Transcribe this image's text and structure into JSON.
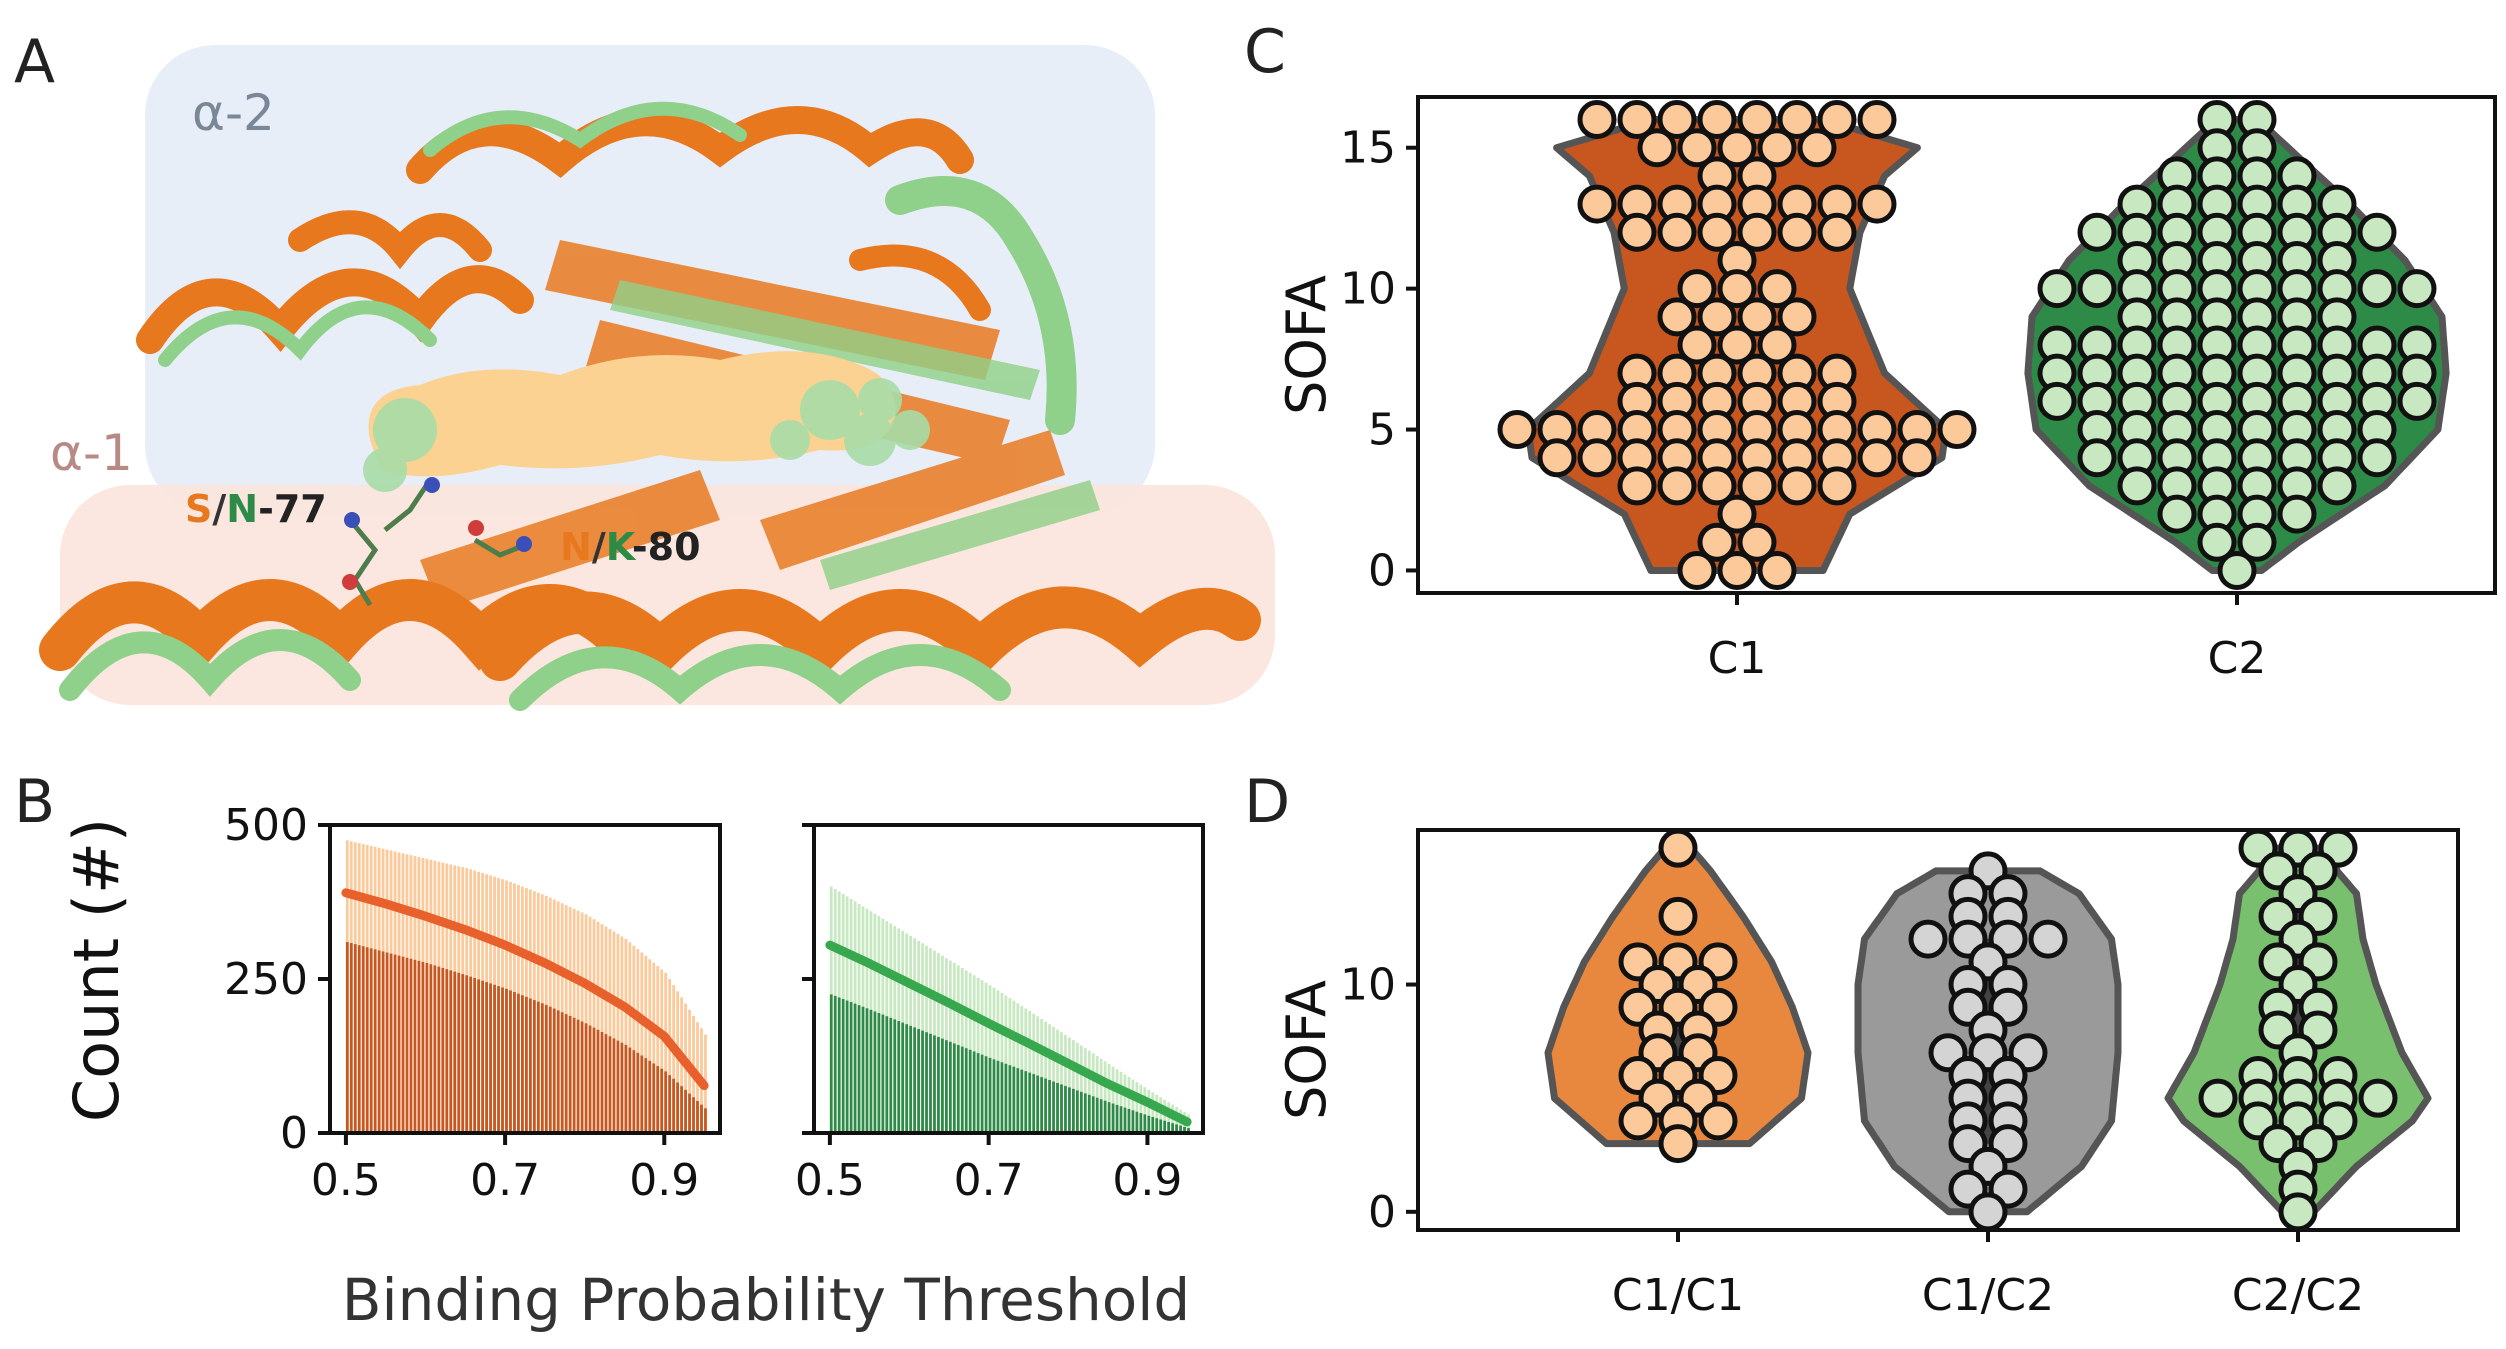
{
  "panels": {
    "A": {
      "letter": "A"
    },
    "B": {
      "letter": "B"
    },
    "C": {
      "letter": "C"
    },
    "D": {
      "letter": "D"
    }
  },
  "structure": {
    "region_top": "α-2",
    "region_bottom": "α-1",
    "residue1": {
      "a": "S",
      "sep": "/",
      "b": "N",
      "num": "-77"
    },
    "residue2": {
      "a": "N",
      "sep": "/",
      "b": "K",
      "num": "-80"
    }
  },
  "colors": {
    "c1_dark": "#c8561f",
    "c1_light": "#fcc99a",
    "c1_mid": "#e8883f",
    "c1_line": "#e8602c",
    "c2_dark": "#2e8b47",
    "c2_light": "#c7e8c0",
    "c2_line": "#38a84e",
    "c2_mid": "#78c06e",
    "grey": "#9a9a9a",
    "grey_light": "#d4d4d4",
    "outline": "#555555"
  },
  "chart_data": [
    {
      "panel": "B",
      "type": "bar",
      "series_name": "C1",
      "xlabel": "Binding Probability Threshold",
      "ylabel": "Count (#)",
      "xlim": [
        0.48,
        0.97
      ],
      "ylim": [
        0,
        500
      ],
      "xticks": [
        "0.5",
        "0.7",
        "0.9"
      ],
      "yticks": [
        "0",
        "250",
        "500"
      ],
      "x": [
        0.5,
        0.55,
        0.6,
        0.65,
        0.7,
        0.75,
        0.8,
        0.85,
        0.9,
        0.95
      ],
      "mean": [
        390,
        372,
        352,
        330,
        305,
        276,
        243,
        205,
        157,
        77
      ],
      "upper": [
        475,
        460,
        445,
        430,
        410,
        385,
        355,
        315,
        260,
        160
      ],
      "lower": [
        310,
        293,
        276,
        256,
        234,
        208,
        178,
        143,
        100,
        40
      ]
    },
    {
      "panel": "B",
      "type": "bar",
      "series_name": "C2",
      "xlim": [
        0.48,
        0.97
      ],
      "ylim": [
        0,
        500
      ],
      "xticks": [
        "0.5",
        "0.7",
        "0.9"
      ],
      "x": [
        0.5,
        0.55,
        0.6,
        0.65,
        0.7,
        0.75,
        0.8,
        0.85,
        0.9,
        0.95
      ],
      "mean": [
        305,
        275,
        243,
        211,
        178,
        146,
        113,
        80,
        50,
        18
      ],
      "upper": [
        400,
        360,
        320,
        280,
        240,
        198,
        155,
        112,
        70,
        30
      ],
      "lower": [
        225,
        200,
        174,
        148,
        122,
        98,
        74,
        50,
        28,
        8
      ]
    },
    {
      "panel": "C",
      "type": "scatter",
      "ylabel": "SOFA",
      "ylim": [
        -0.8,
        16.8
      ],
      "yticks": [
        "0",
        "5",
        "10",
        "15"
      ],
      "categories": [
        "C1",
        "C2"
      ],
      "violin_C1": [
        [
          0,
          0.42
        ],
        [
          2,
          0.55
        ],
        [
          4,
          1.0
        ],
        [
          5,
          1.02
        ],
        [
          7,
          0.72
        ],
        [
          10,
          0.55
        ],
        [
          12,
          0.6
        ],
        [
          14,
          0.72
        ],
        [
          15,
          0.88
        ],
        [
          16,
          0.42
        ]
      ],
      "violin_C2": [
        [
          0,
          0.12
        ],
        [
          1,
          0.3
        ],
        [
          3,
          0.72
        ],
        [
          5,
          0.98
        ],
        [
          7,
          1.02
        ],
        [
          9,
          1.0
        ],
        [
          11,
          0.82
        ],
        [
          13,
          0.55
        ],
        [
          15,
          0.25
        ],
        [
          16,
          0.1
        ]
      ],
      "points_C1": [
        {
          "y": 16,
          "n": 8
        },
        {
          "y": 15,
          "n": 5
        },
        {
          "y": 14,
          "n": 2
        },
        {
          "y": 13,
          "n": 8
        },
        {
          "y": 12,
          "n": 6
        },
        {
          "y": 11,
          "n": 1
        },
        {
          "y": 10,
          "n": 3
        },
        {
          "y": 9,
          "n": 4
        },
        {
          "y": 8,
          "n": 3
        },
        {
          "y": 7,
          "n": 6
        },
        {
          "y": 6,
          "n": 6
        },
        {
          "y": 5,
          "n": 12
        },
        {
          "y": 4,
          "n": 10
        },
        {
          "y": 3,
          "n": 6
        },
        {
          "y": 2,
          "n": 1
        },
        {
          "y": 1,
          "n": 2
        },
        {
          "y": 0,
          "n": 3
        }
      ],
      "points_C2": [
        {
          "y": 16,
          "n": 2
        },
        {
          "y": 15,
          "n": 2
        },
        {
          "y": 14,
          "n": 4
        },
        {
          "y": 13,
          "n": 6
        },
        {
          "y": 12,
          "n": 8
        },
        {
          "y": 11,
          "n": 6
        },
        {
          "y": 10,
          "n": 10
        },
        {
          "y": 9,
          "n": 6
        },
        {
          "y": 8,
          "n": 10
        },
        {
          "y": 7,
          "n": 10
        },
        {
          "y": 6,
          "n": 10
        },
        {
          "y": 5,
          "n": 8
        },
        {
          "y": 4,
          "n": 8
        },
        {
          "y": 3,
          "n": 6
        },
        {
          "y": 2,
          "n": 4
        },
        {
          "y": 1,
          "n": 2
        },
        {
          "y": 0,
          "n": 1
        }
      ]
    },
    {
      "panel": "D",
      "type": "scatter",
      "ylabel": "SOFA",
      "ylim": [
        -0.8,
        16.8
      ],
      "yticks": [
        "0",
        "10"
      ],
      "categories": [
        "C1/C1",
        "C1/C2",
        "C2/C2"
      ],
      "groups": [
        {
          "name": "C1/C1",
          "violin": [
            [
              3,
              0.55
            ],
            [
              5,
              0.95
            ],
            [
              7,
              1.0
            ],
            [
              9,
              0.88
            ],
            [
              11,
              0.72
            ],
            [
              13,
              0.5
            ],
            [
              15,
              0.25
            ],
            [
              16,
              0.1
            ]
          ],
          "iqr": [
            5,
            11
          ],
          "points": [
            {
              "y": 16,
              "n": 1
            },
            {
              "y": 13,
              "n": 1
            },
            {
              "y": 11,
              "n": 3
            },
            {
              "y": 10,
              "n": 2
            },
            {
              "y": 9,
              "n": 3
            },
            {
              "y": 8,
              "n": 2
            },
            {
              "y": 7,
              "n": 2
            },
            {
              "y": 6,
              "n": 3
            },
            {
              "y": 5,
              "n": 2
            },
            {
              "y": 4,
              "n": 3
            },
            {
              "y": 3,
              "n": 1
            }
          ]
        },
        {
          "name": "C1/C2",
          "violin": [
            [
              0,
              0.3
            ],
            [
              2,
              0.72
            ],
            [
              4,
              0.95
            ],
            [
              7,
              1.0
            ],
            [
              10,
              1.0
            ],
            [
              12,
              0.95
            ],
            [
              14,
              0.7
            ],
            [
              15,
              0.4
            ]
          ],
          "iqr": [
            3,
            12
          ],
          "points": [
            {
              "y": 15,
              "n": 1
            },
            {
              "y": 14,
              "n": 2
            },
            {
              "y": 13,
              "n": 2
            },
            {
              "y": 12,
              "n": 4
            },
            {
              "y": 11,
              "n": 1
            },
            {
              "y": 10,
              "n": 2
            },
            {
              "y": 9,
              "n": 2
            },
            {
              "y": 8,
              "n": 1
            },
            {
              "y": 7,
              "n": 3
            },
            {
              "y": 6,
              "n": 2
            },
            {
              "y": 5,
              "n": 2
            },
            {
              "y": 4,
              "n": 2
            },
            {
              "y": 3,
              "n": 2
            },
            {
              "y": 2,
              "n": 1
            },
            {
              "y": 1,
              "n": 2
            },
            {
              "y": 0,
              "n": 1
            }
          ]
        },
        {
          "name": "C2/C2",
          "violin": [
            [
              0,
              0.12
            ],
            [
              2,
              0.45
            ],
            [
              4,
              0.88
            ],
            [
              5,
              1.0
            ],
            [
              7,
              0.8
            ],
            [
              10,
              0.6
            ],
            [
              12,
              0.5
            ],
            [
              14,
              0.45
            ],
            [
              15,
              0.3
            ],
            [
              16,
              0.25
            ]
          ],
          "iqr": [
            4,
            14
          ],
          "points": [
            {
              "y": 16,
              "n": 3
            },
            {
              "y": 15,
              "n": 2
            },
            {
              "y": 14,
              "n": 1
            },
            {
              "y": 13,
              "n": 2
            },
            {
              "y": 12,
              "n": 1
            },
            {
              "y": 11,
              "n": 2
            },
            {
              "y": 10,
              "n": 1
            },
            {
              "y": 9,
              "n": 2
            },
            {
              "y": 8,
              "n": 2
            },
            {
              "y": 7,
              "n": 1
            },
            {
              "y": 6,
              "n": 3
            },
            {
              "y": 5,
              "n": 5
            },
            {
              "y": 4,
              "n": 3
            },
            {
              "y": 3,
              "n": 2
            },
            {
              "y": 2,
              "n": 1
            },
            {
              "y": 1,
              "n": 1
            },
            {
              "y": 0,
              "n": 1
            }
          ]
        }
      ]
    }
  ]
}
